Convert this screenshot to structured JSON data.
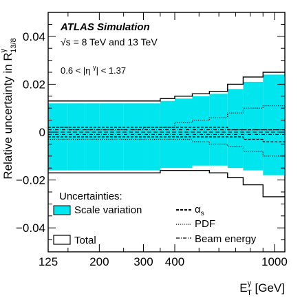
{
  "chart_data": {
    "type": "step",
    "title": "",
    "experiment_label": "ATLAS Simulation",
    "energy_label": "√s = 8 TeV and 13 TeV",
    "region_label": "0.6 < |η^γ| < 1.37",
    "ylabel": {
      "main": "Relative uncertainty in R",
      "sub": "13/8",
      "sup": "γ"
    },
    "xlabel": {
      "main": "E",
      "sub": "T",
      "sup": "γ",
      "unit": " [GeV]"
    },
    "x_log": true,
    "xlim": [
      125,
      1100
    ],
    "ylim": [
      -0.05,
      0.05
    ],
    "x_ticks": [
      {
        "value": 125,
        "label": "125"
      },
      {
        "value": 200,
        "label": "200"
      },
      {
        "value": 300,
        "label": "300"
      },
      {
        "value": 400,
        "label": "400"
      },
      {
        "value": 1000,
        "label": "1000"
      }
    ],
    "y_ticks": [
      {
        "value": -0.04,
        "label": "−0.04"
      },
      {
        "value": -0.02,
        "label": "−0.02"
      },
      {
        "value": 0,
        "label": "0"
      },
      {
        "value": 0.02,
        "label": "0.02"
      },
      {
        "value": 0.04,
        "label": "0.04"
      }
    ],
    "bin_edges": [
      125,
      150,
      175,
      200,
      250,
      300,
      350,
      400,
      470,
      550,
      650,
      750,
      900,
      1100
    ],
    "series": [
      {
        "name": "Scale variation",
        "style": "fill",
        "color": "#00e5ee",
        "upper": [
          0.012,
          0.012,
          0.012,
          0.012,
          0.012,
          0.012,
          0.013,
          0.014,
          0.015,
          0.016,
          0.018,
          0.021,
          0.024
        ],
        "lower": [
          -0.016,
          -0.016,
          -0.016,
          -0.016,
          -0.016,
          -0.016,
          -0.015,
          -0.015,
          -0.014,
          -0.014,
          -0.015,
          -0.016,
          -0.018
        ]
      },
      {
        "name": "Total",
        "style": "solid",
        "upper": [
          0.013,
          0.013,
          0.013,
          0.013,
          0.013,
          0.013,
          0.014,
          0.015,
          0.016,
          0.017,
          0.02,
          0.023,
          0.025
        ],
        "lower": [
          -0.017,
          -0.017,
          -0.017,
          -0.017,
          -0.017,
          -0.017,
          -0.016,
          -0.016,
          -0.016,
          -0.017,
          -0.019,
          -0.022,
          -0.027
        ]
      },
      {
        "name": "α_s",
        "style": "dashed",
        "upper": [
          0.002,
          0.002,
          0.002,
          0.002,
          0.002,
          0.002,
          0.002,
          0.002,
          0.002,
          0.002,
          0.001,
          0.001,
          0.001
        ],
        "lower": [
          -0.002,
          -0.002,
          -0.002,
          -0.002,
          -0.002,
          -0.002,
          -0.002,
          -0.002,
          -0.002,
          -0.002,
          -0.002,
          -0.003,
          -0.004
        ]
      },
      {
        "name": "PDF",
        "style": "dotted",
        "upper": [
          0.002,
          0.001,
          0.001,
          0.001,
          0.001,
          0.002,
          0.002,
          0.004,
          0.005,
          0.006,
          0.008,
          0.01,
          0.011
        ],
        "lower": [
          -0.003,
          -0.003,
          -0.003,
          -0.003,
          -0.003,
          -0.003,
          -0.003,
          -0.003,
          -0.004,
          -0.005,
          -0.006,
          -0.008,
          -0.01
        ]
      },
      {
        "name": "Beam energy",
        "style": "dashdot",
        "upper": [
          0.001,
          0.001,
          0.001,
          0.001,
          0.001,
          0.001,
          0.001,
          0.001,
          0.001,
          0.001,
          0.001,
          0.001,
          0.001
        ],
        "lower": [
          -0.001,
          -0.001,
          -0.001,
          -0.001,
          -0.001,
          -0.001,
          -0.001,
          -0.001,
          -0.001,
          -0.001,
          -0.001,
          -0.001,
          -0.001
        ]
      }
    ],
    "legend": {
      "title": "Uncertainties:",
      "entries": [
        {
          "label": "Scale variation",
          "style": "fill"
        },
        {
          "label": "α_s",
          "style": "dashed"
        },
        {
          "label": "PDF",
          "style": "dotted"
        },
        {
          "label": "Beam energy",
          "style": "dashdot"
        },
        {
          "label": "Total",
          "style": "solid"
        }
      ]
    }
  }
}
